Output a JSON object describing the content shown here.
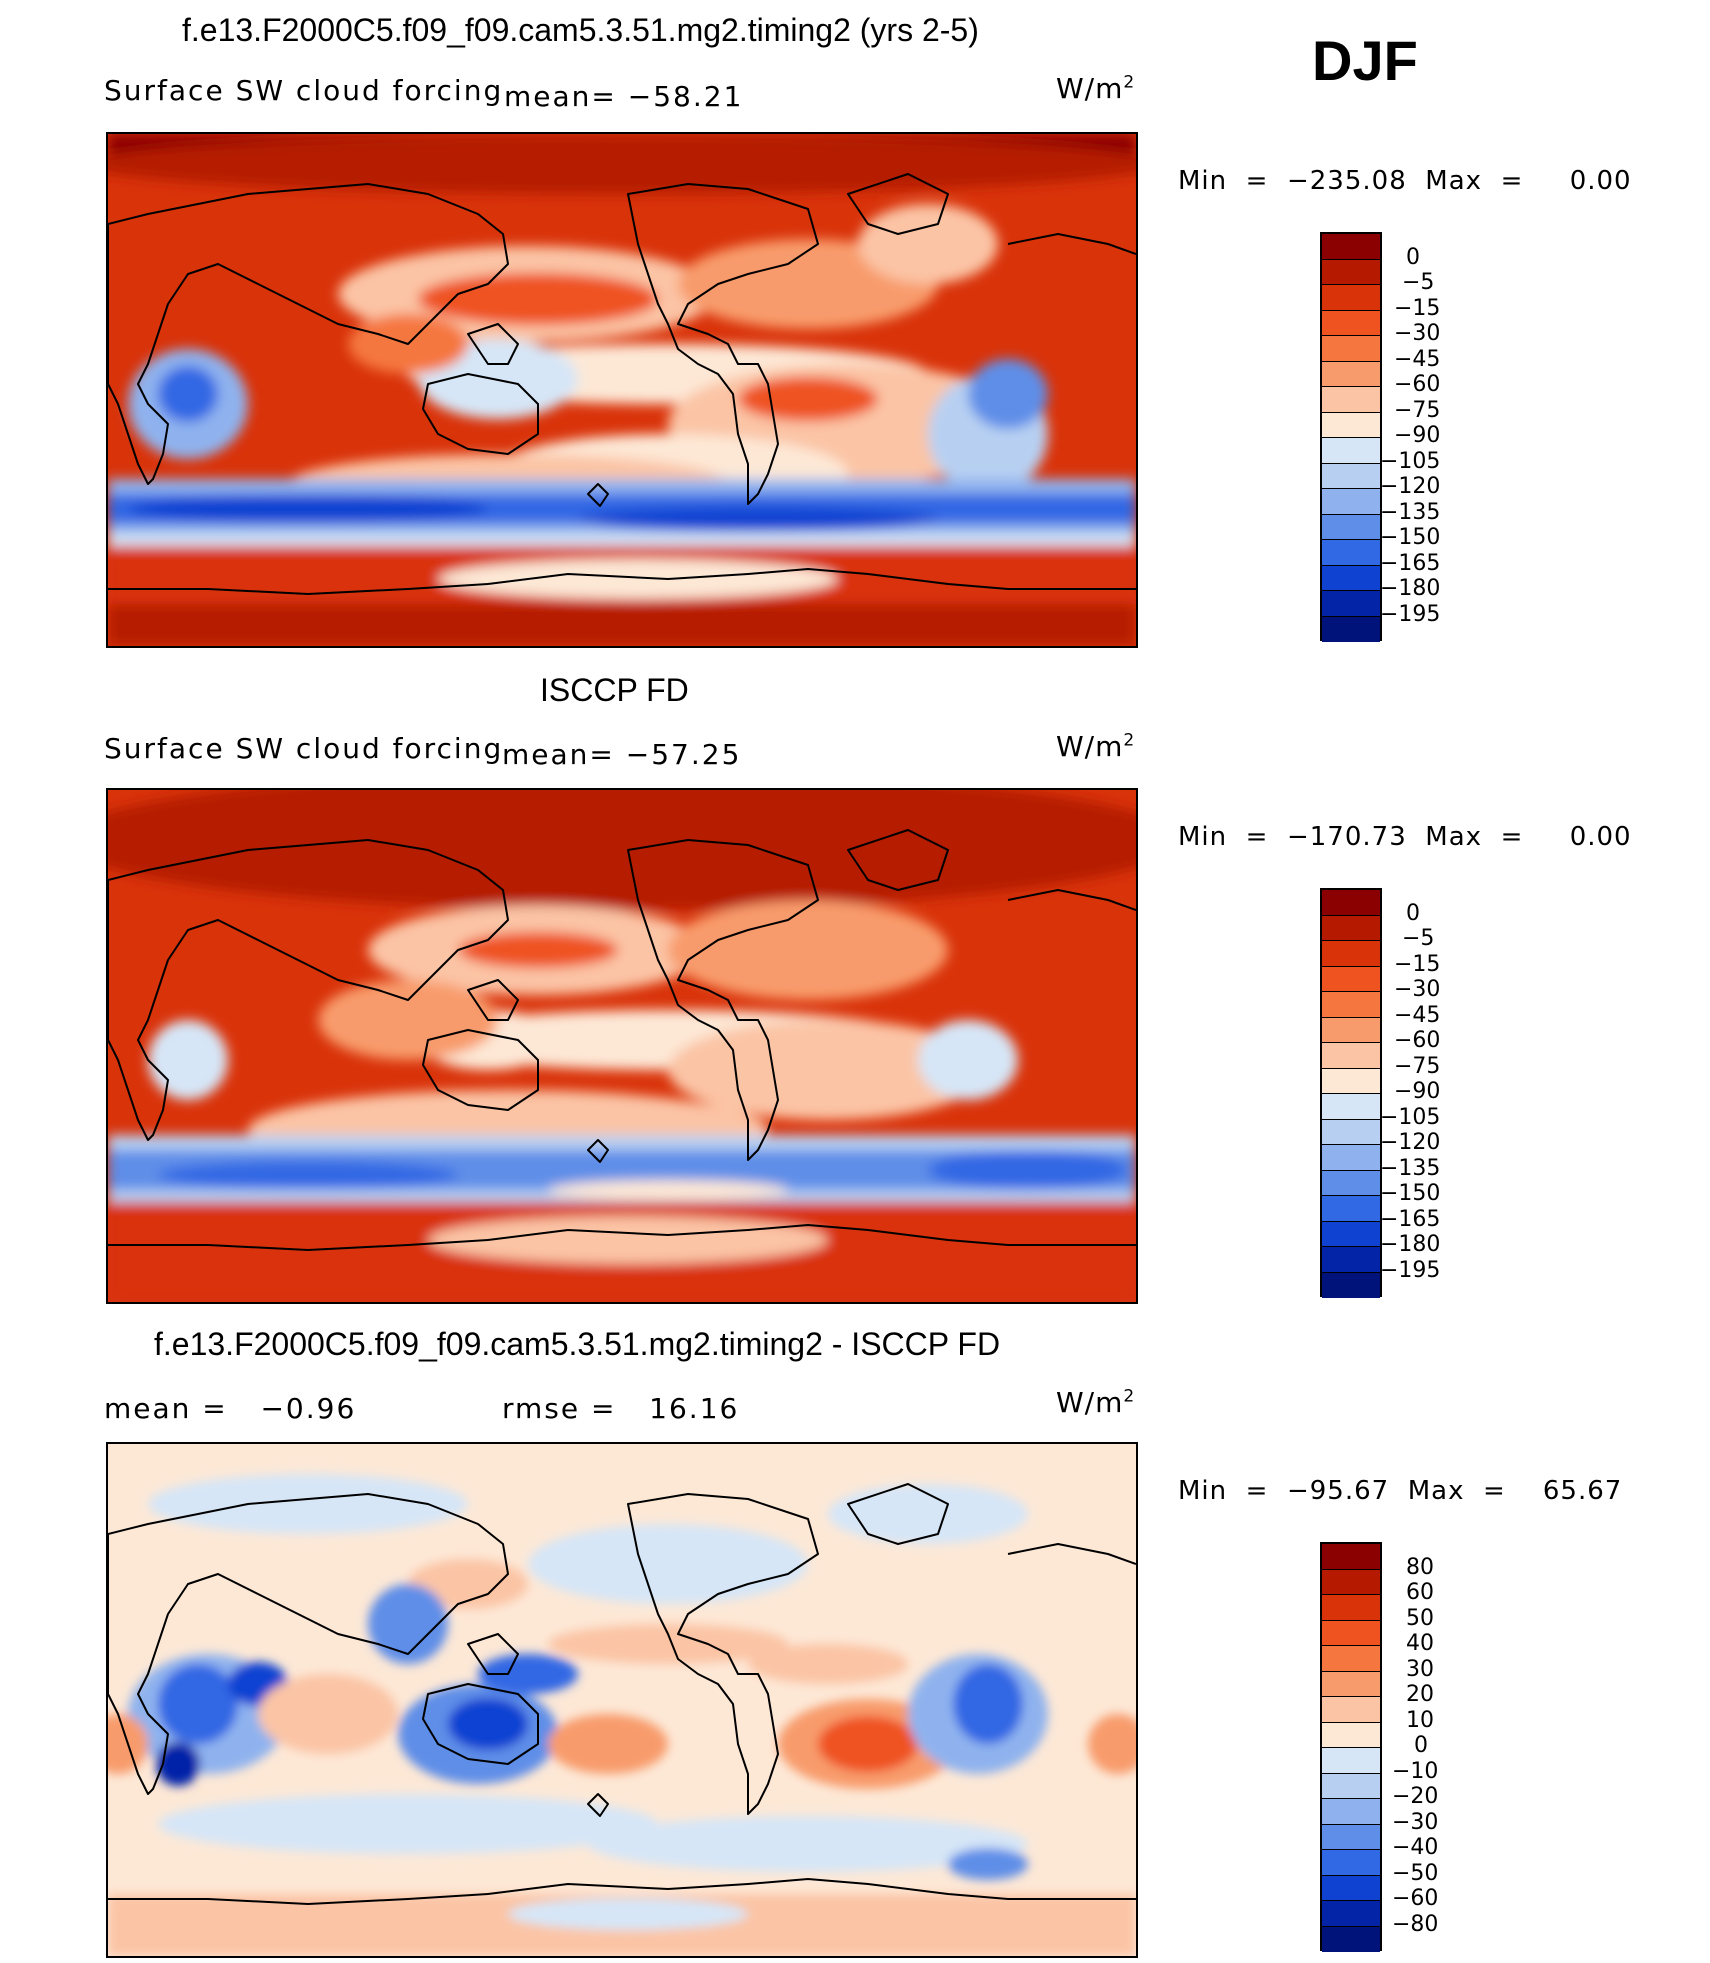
{
  "season": "DJF",
  "panels": [
    {
      "title": "f.e13.F2000C5.f09_f09.cam5.3.51.mg2.timing2 (yrs 2-5)",
      "variable": "Surface SW cloud forcing",
      "stat_left": "",
      "stat_right": "mean= −58.21",
      "units": "W/m",
      "units_sup": "2",
      "min_label": "Min",
      "min_value": "−235.08",
      "max_label": "Max",
      "max_value": "0.00",
      "levels": [
        "0",
        "−5",
        "−15",
        "−30",
        "−45",
        "−60",
        "−75",
        "−90",
        "−105",
        "−120",
        "−135",
        "−150",
        "−165",
        "−180",
        "−195"
      ],
      "colors": [
        "#8b0000",
        "#b51a00",
        "#d9330a",
        "#ef5320",
        "#f5773f",
        "#f89b6c",
        "#fbc4a5",
        "#fde8d6",
        "#d6e6f7",
        "#b7d0f2",
        "#8fb2ee",
        "#5e8ee8",
        "#3168e4",
        "#1042d2",
        "#0424a8",
        "#00137a"
      ]
    },
    {
      "title": "ISCCP FD",
      "variable": "Surface SW cloud forcing",
      "stat_left": "",
      "stat_right": "mean= −57.25",
      "units": "W/m",
      "units_sup": "2",
      "min_label": "Min",
      "min_value": "−170.73",
      "max_label": "Max",
      "max_value": "0.00",
      "levels": [
        "0",
        "−5",
        "−15",
        "−30",
        "−45",
        "−60",
        "−75",
        "−90",
        "−105",
        "−120",
        "−135",
        "−150",
        "−165",
        "−180",
        "−195"
      ],
      "colors": [
        "#8b0000",
        "#b51a00",
        "#d9330a",
        "#ef5320",
        "#f5773f",
        "#f89b6c",
        "#fbc4a5",
        "#fde8d6",
        "#d6e6f7",
        "#b7d0f2",
        "#8fb2ee",
        "#5e8ee8",
        "#3168e4",
        "#1042d2",
        "#0424a8",
        "#00137a"
      ]
    },
    {
      "title": "f.e13.F2000C5.f09_f09.cam5.3.51.mg2.timing2 - ISCCP FD",
      "variable": "mean =   −0.96",
      "stat_left": "",
      "stat_right": "rmse =   16.16",
      "units": "W/m",
      "units_sup": "2",
      "min_label": "Min",
      "min_value": "−95.67",
      "max_label": "Max",
      "max_value": "65.67",
      "levels": [
        "80",
        "60",
        "50",
        "40",
        "30",
        "20",
        "10",
        "0",
        "−10",
        "−20",
        "−30",
        "−40",
        "−50",
        "−60",
        "−80"
      ],
      "colors": [
        "#8b0000",
        "#b51a00",
        "#d9330a",
        "#ef5320",
        "#f5773f",
        "#f89b6c",
        "#fbc4a5",
        "#fde8d6",
        "#d6e6f7",
        "#b7d0f2",
        "#8fb2ee",
        "#5e8ee8",
        "#3168e4",
        "#1042d2",
        "#0424a8",
        "#00137a"
      ]
    }
  ]
}
